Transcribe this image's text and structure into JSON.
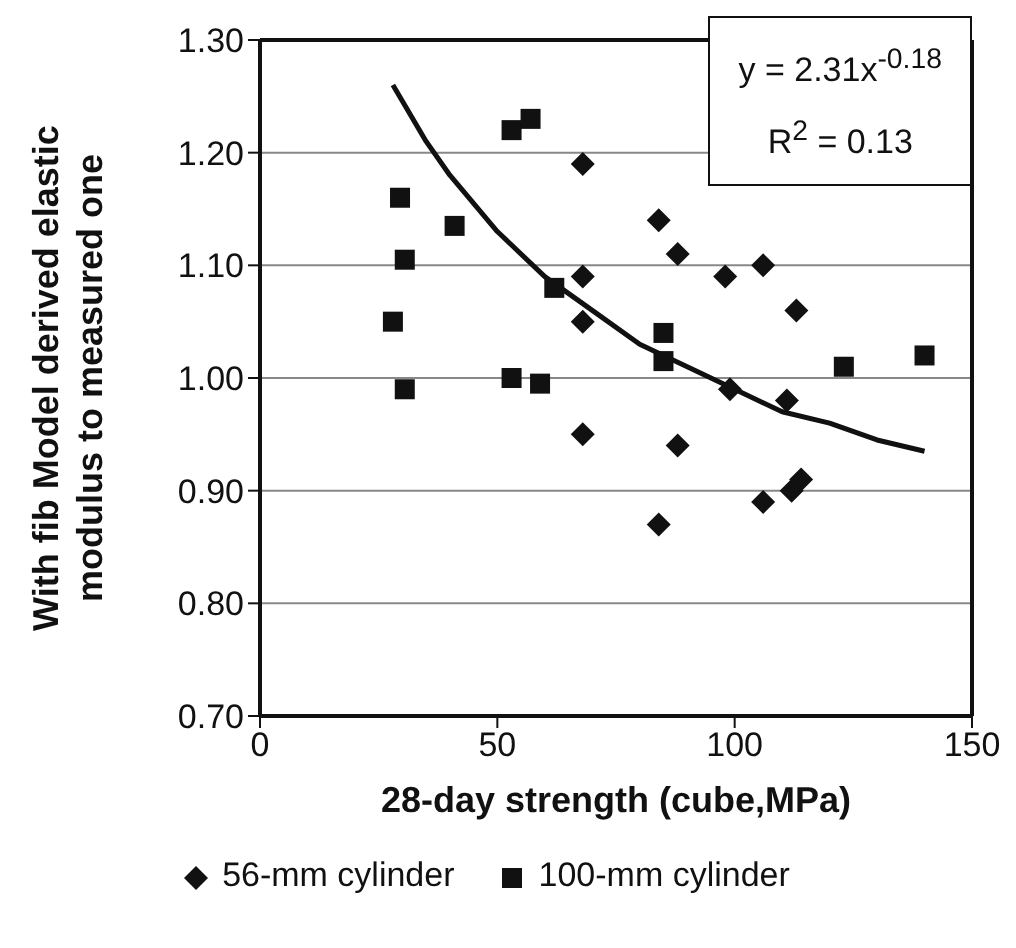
{
  "chart_data": {
    "type": "scatter",
    "xlabel": "28-day strength (cube,MPa)",
    "ylabel": "With fib Model derived elastic\nmodulus to measured one",
    "xlim": [
      0,
      150
    ],
    "xticks": [
      0,
      50,
      100,
      150
    ],
    "ylim": [
      0.7,
      1.3
    ],
    "yticks": [
      {
        "value": 0.7,
        "label": "0.70"
      },
      {
        "value": 0.8,
        "label": "0.80"
      },
      {
        "value": 0.9,
        "label": "0.90"
      },
      {
        "value": 1.0,
        "label": "1.00"
      },
      {
        "value": 1.1,
        "label": "1.10"
      },
      {
        "value": 1.2,
        "label": "1.20"
      },
      {
        "value": 1.3,
        "label": "1.30"
      }
    ],
    "grid": "y",
    "legend": "bottom",
    "annotations": [
      "y = 2.31x$^{-0.18}$",
      "R$^{2}$ = 0.13"
    ],
    "series": [
      {
        "name": "56-mm cylinder",
        "marker": "diamond",
        "color": "#111111",
        "x": [
          68,
          68,
          68,
          68,
          84,
          88,
          84,
          88,
          98,
          106,
          113,
          99,
          111,
          106,
          112,
          114
        ],
        "values": [
          1.19,
          1.09,
          1.05,
          0.95,
          1.14,
          1.11,
          0.87,
          0.94,
          1.09,
          1.1,
          1.06,
          0.99,
          0.98,
          0.89,
          0.9,
          0.91
        ]
      },
      {
        "name": "100-mm cylinder",
        "marker": "square",
        "color": "#111111",
        "x": [
          28,
          29.5,
          30.5,
          30.5,
          41,
          53,
          57,
          53,
          59,
          62,
          85,
          85,
          123,
          140
        ],
        "values": [
          1.05,
          1.16,
          1.105,
          0.99,
          1.135,
          1.22,
          1.23,
          1.0,
          0.995,
          1.08,
          1.04,
          1.015,
          1.01,
          1.02
        ]
      },
      {
        "type": "line",
        "marker": "none",
        "color": "#111111",
        "x": [
          28,
          35,
          40,
          50,
          60,
          70,
          80,
          90,
          100,
          110,
          120,
          130,
          140
        ],
        "values": [
          1.26,
          1.21,
          1.18,
          1.13,
          1.09,
          1.06,
          1.03,
          1.01,
          0.99,
          0.97,
          0.96,
          0.945,
          0.935
        ]
      }
    ]
  }
}
